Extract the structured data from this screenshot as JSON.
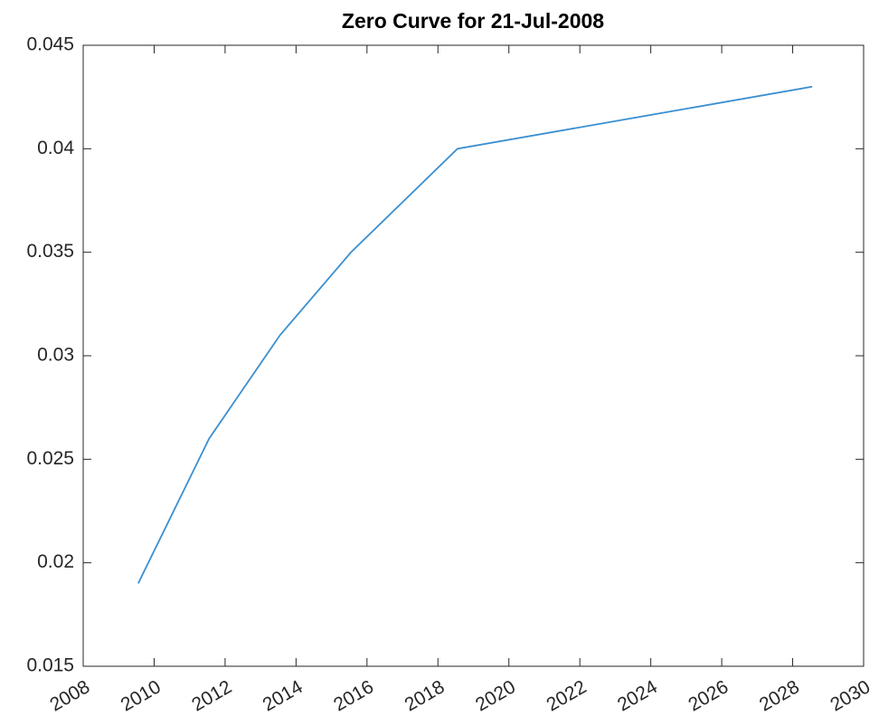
{
  "chart_data": {
    "type": "line",
    "title": "Zero Curve for 21-Jul-2008",
    "x": [
      2009.55,
      2011.55,
      2013.55,
      2015.55,
      2018.55,
      2028.55
    ],
    "series": [
      {
        "color": "#3a8fd0",
        "values": [
          0.019,
          0.026,
          0.031,
          0.035,
          0.04,
          0.043
        ]
      }
    ],
    "xlim": [
      2008,
      2030
    ],
    "xticks": [
      2008,
      2010,
      2012,
      2014,
      2016,
      2018,
      2020,
      2022,
      2024,
      2026,
      2028,
      2030
    ],
    "ylim": [
      0.015,
      0.045
    ],
    "yticks": [
      0.015,
      0.02,
      0.025,
      0.03,
      0.035,
      0.04,
      0.045
    ],
    "grid": false
  }
}
